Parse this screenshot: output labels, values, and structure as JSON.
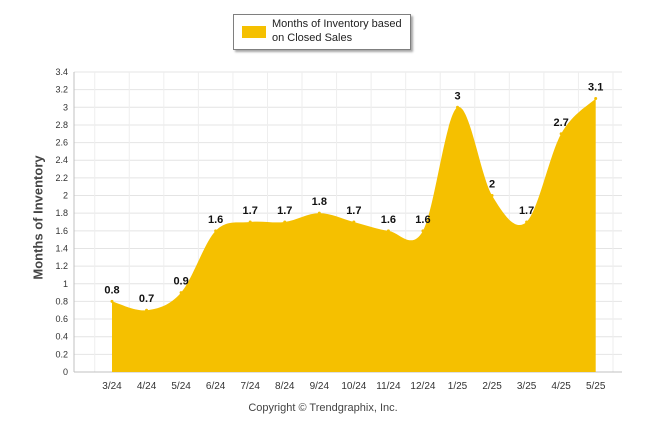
{
  "chart_data": {
    "type": "area",
    "categories": [
      "3/24",
      "4/24",
      "5/24",
      "6/24",
      "7/24",
      "8/24",
      "9/24",
      "10/24",
      "11/24",
      "12/24",
      "1/25",
      "2/25",
      "3/25",
      "4/25",
      "5/25"
    ],
    "series": [
      {
        "name": "Months of Inventory based on Closed Sales",
        "values": [
          0.8,
          0.7,
          0.9,
          1.6,
          1.7,
          1.7,
          1.8,
          1.7,
          1.6,
          1.6,
          3,
          2,
          1.7,
          2.7,
          3.1
        ]
      }
    ],
    "data_labels": [
      "0.8",
      "0.7",
      "0.9",
      "1.6",
      "1.7",
      "1.7",
      "1.8",
      "1.7",
      "1.6",
      "1.6",
      "3",
      "2",
      "1.7",
      "2.7",
      "3.1"
    ],
    "ylabel": "Months of Inventory",
    "xlabel": "",
    "ylim": [
      0,
      3.4
    ],
    "yticks": [
      "0",
      "0.2",
      "0.4",
      "0.6",
      "0.8",
      "1",
      "1.2",
      "1.4",
      "1.6",
      "1.8",
      "2",
      "2.2",
      "2.4",
      "2.6",
      "2.8",
      "3",
      "3.2",
      "3.4"
    ],
    "grid": true,
    "legend_position": "top-center",
    "colors": {
      "area": "#F5C000",
      "grid": "#E4E4E4",
      "axis": "#C0C0C0"
    }
  },
  "footer": "Copyright © Trendgraphix, Inc."
}
